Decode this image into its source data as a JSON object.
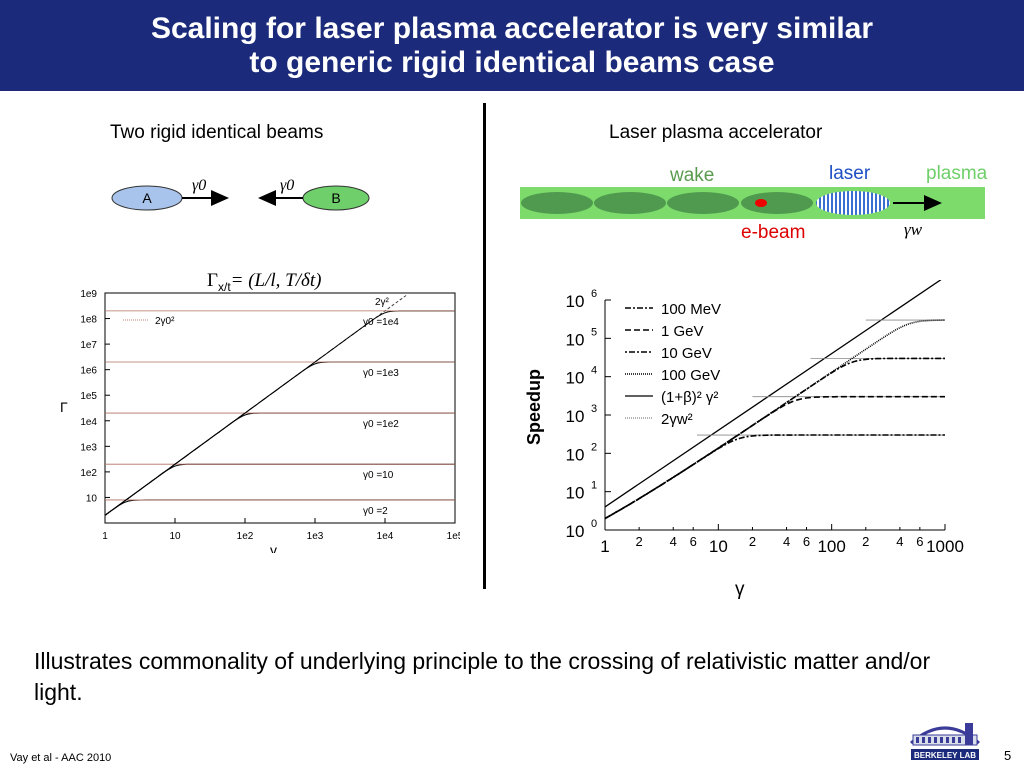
{
  "slide": {
    "title_line1": "Scaling for laser plasma accelerator is very similar",
    "title_line2": "to generic rigid identical beams case",
    "left_heading": "Two rigid identical beams",
    "right_heading": "Laser plasma accelerator",
    "caption": "Illustrates commonality of underlying principle to the crossing of relativistic matter and/or light.",
    "footer": "Vay et al - AAC 2010",
    "page_number": "5",
    "logo_text": "BERKELEY LAB"
  },
  "beams_diagram": {
    "beam_a": "A",
    "beam_b": "B",
    "gamma_a": "γ0",
    "gamma_b": "γ0",
    "colors": {
      "beam_a": "#a9c4ec",
      "beam_b": "#6fcf6a"
    }
  },
  "lpa_diagram": {
    "wake": "wake",
    "laser": "laser",
    "plasma": "plasma",
    "ebeam": "e-beam",
    "gamma_w": "γw",
    "colors": {
      "plasma": "#7ddb6b",
      "wake": "#4f9a4f",
      "ebeam": "#ee0000",
      "laser": "#3a6fd1",
      "wake_text": "#5a9a4f",
      "laser_text": "#1f4fc4",
      "plasma_text": "#6fcf6a",
      "ebeam_text": "#dd0000"
    }
  },
  "formula": {
    "prefix": "Γ",
    "sub": "x/t",
    "rhs": "= (L/l, T/δt)"
  },
  "chart_data": [
    {
      "type": "line",
      "log_x": true,
      "log_y": true,
      "xlim": [
        1,
        100000
      ],
      "ylim": [
        1,
        1000000000
      ],
      "xlabel": "γ",
      "ylabel": "Γ",
      "x_ticks": [
        "1",
        "10",
        "1e2",
        "1e3",
        "1e4",
        "1e5"
      ],
      "y_ticks": [
        "10",
        "1e2",
        "1e3",
        "1e4",
        "1e5",
        "1e6",
        "1e7",
        "1e8",
        "1e9"
      ],
      "legend": [
        "2γ0²"
      ],
      "asymptote_label": "2γ²",
      "series": [
        {
          "name": "γ0 =2",
          "gamma0": 2,
          "plateau": 8
        },
        {
          "name": "γ0 =10",
          "gamma0": 10,
          "plateau": 200
        },
        {
          "name": "γ0 =1e2",
          "gamma0": 100,
          "plateau": 20000
        },
        {
          "name": "γ0 =1e3",
          "gamma0": 1000,
          "plateau": 2000000
        },
        {
          "name": "γ0 =1e4",
          "gamma0": 10000,
          "plateau": 200000000
        }
      ],
      "grid": false
    },
    {
      "type": "line",
      "log_x": true,
      "log_y": true,
      "xlim": [
        1,
        1000
      ],
      "ylim": [
        1,
        1000000
      ],
      "xlabel": "γ",
      "ylabel": "Speedup",
      "x_ticks": [
        "1",
        "2",
        "4",
        "6",
        "10",
        "2",
        "4",
        "6",
        "100",
        "2",
        "4",
        "6",
        "1000"
      ],
      "y_ticks": [
        "10",
        "10",
        "10",
        "10",
        "10",
        "10",
        "10"
      ],
      "y_exponents": [
        "0",
        "1",
        "2",
        "3",
        "4",
        "5",
        "6"
      ],
      "legend": [
        "100 MeV",
        "1 GeV",
        "10 GeV",
        "100 GeV",
        "(1+β)² γ²",
        "2γw²"
      ],
      "series": [
        {
          "name": "100 MeV",
          "gamma_w": 13,
          "plateau": 300
        },
        {
          "name": "1 GeV",
          "gamma_w": 40,
          "plateau": 3000
        },
        {
          "name": "10 GeV",
          "gamma_w": 130,
          "plateau": 30000
        },
        {
          "name": "100 GeV",
          "gamma_w": 400,
          "plateau": 300000
        }
      ],
      "grid": false
    }
  ]
}
